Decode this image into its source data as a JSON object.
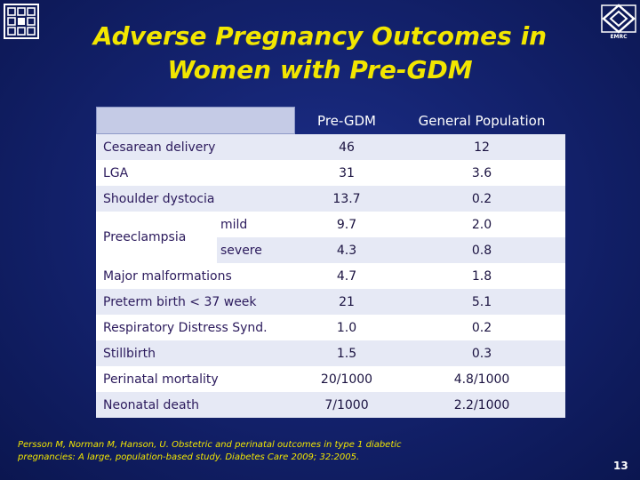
{
  "slide": {
    "title_line1": "Adverse Pregnancy Outcomes in",
    "title_line2": "Women with Pre-GDM",
    "logo_right_caption": "EMRC",
    "page_number": "13"
  },
  "table": {
    "headers": [
      "Pre-GDM",
      "General Population"
    ],
    "rows": [
      {
        "label": "Cesarean delivery",
        "pre_gdm": "46",
        "general": "12"
      },
      {
        "label": "LGA",
        "pre_gdm": "31",
        "general": "3.6"
      },
      {
        "label": "Shoulder dystocia",
        "pre_gdm": "13.7",
        "general": "0.2"
      },
      {
        "label": "Preeclampsia",
        "sub_label": "mild",
        "pre_gdm": "9.7",
        "general": "2.0"
      },
      {
        "sub_label": "severe",
        "pre_gdm": "4.3",
        "general": "0.8"
      },
      {
        "label": "Major malformations",
        "pre_gdm": "4.7",
        "general": "1.8"
      },
      {
        "label": "Preterm birth < 37 week",
        "pre_gdm": "21",
        "general": "5.1"
      },
      {
        "label": "Respiratory Distress Synd.",
        "pre_gdm": "1.0",
        "general": "0.2"
      },
      {
        "label": "Stillbirth",
        "pre_gdm": "1.5",
        "general": "0.3"
      },
      {
        "label": "Perinatal mortality",
        "pre_gdm": "20/1000",
        "general": "4.8/1000"
      },
      {
        "label": "Neonatal death",
        "pre_gdm": "7/1000",
        "general": "2.2/1000"
      }
    ]
  },
  "reference": {
    "line1": "Persson M, Norman  M, Hanson, U. Obstetric and perinatal outcomes in type 1 diabetic",
    "line2": "pregnancies: A large, population-based study. Diabetes Care 2009; 32:2005."
  },
  "colors": {
    "title": "#f2e600",
    "background": "#142370",
    "row_shade": "#e6e9f5",
    "row_white": "#ffffff",
    "label_text": "#2b1a5c"
  }
}
